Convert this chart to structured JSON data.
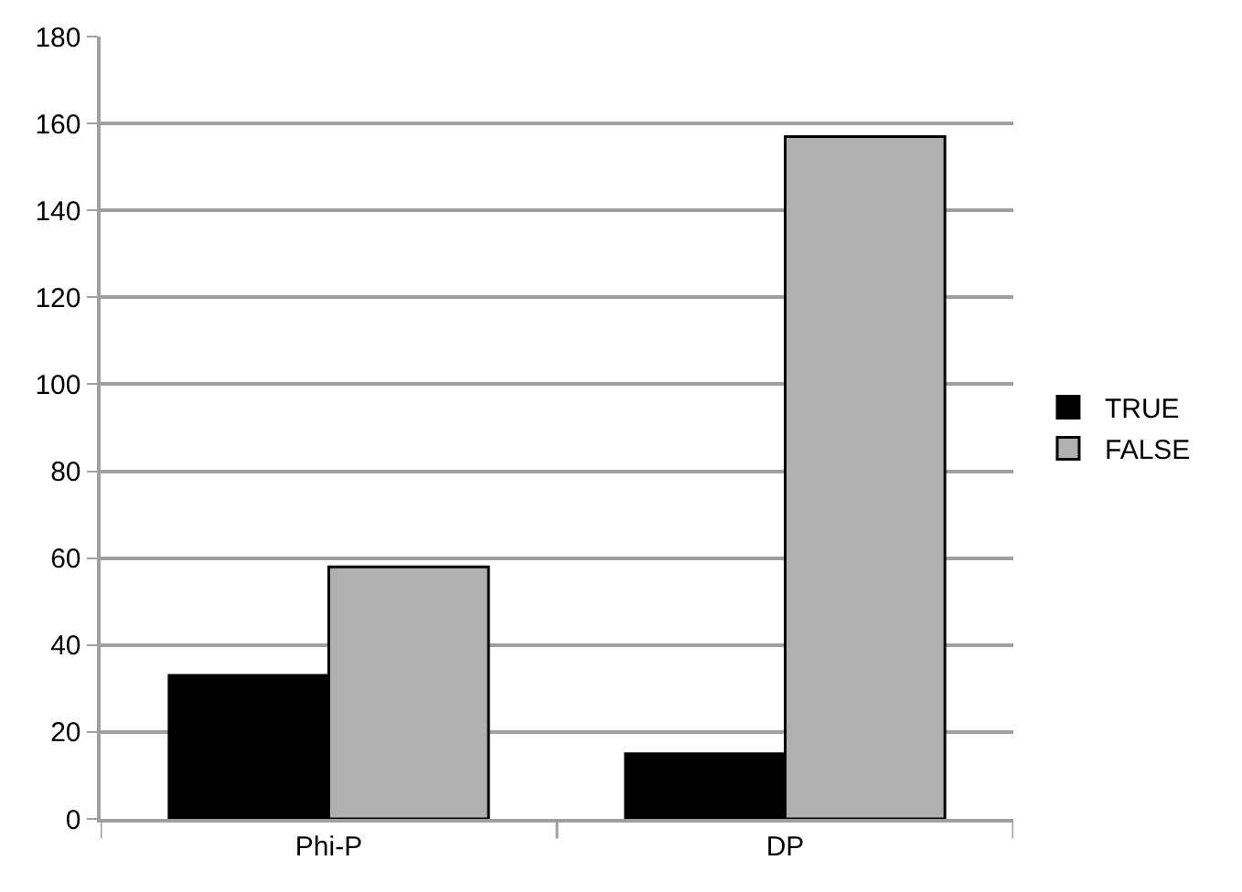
{
  "chart_data": {
    "type": "bar",
    "categories": [
      "Phi-P",
      "DP"
    ],
    "series": [
      {
        "name": "TRUE",
        "color": "#000000",
        "values": [
          33,
          15
        ]
      },
      {
        "name": "FALSE",
        "color": "#b0b0b0",
        "values": [
          58,
          157
        ]
      }
    ],
    "ylim": [
      0,
      180
    ],
    "yticks": [
      0,
      20,
      40,
      60,
      80,
      100,
      120,
      140,
      160,
      180
    ],
    "grid": "y",
    "legend": "right"
  }
}
